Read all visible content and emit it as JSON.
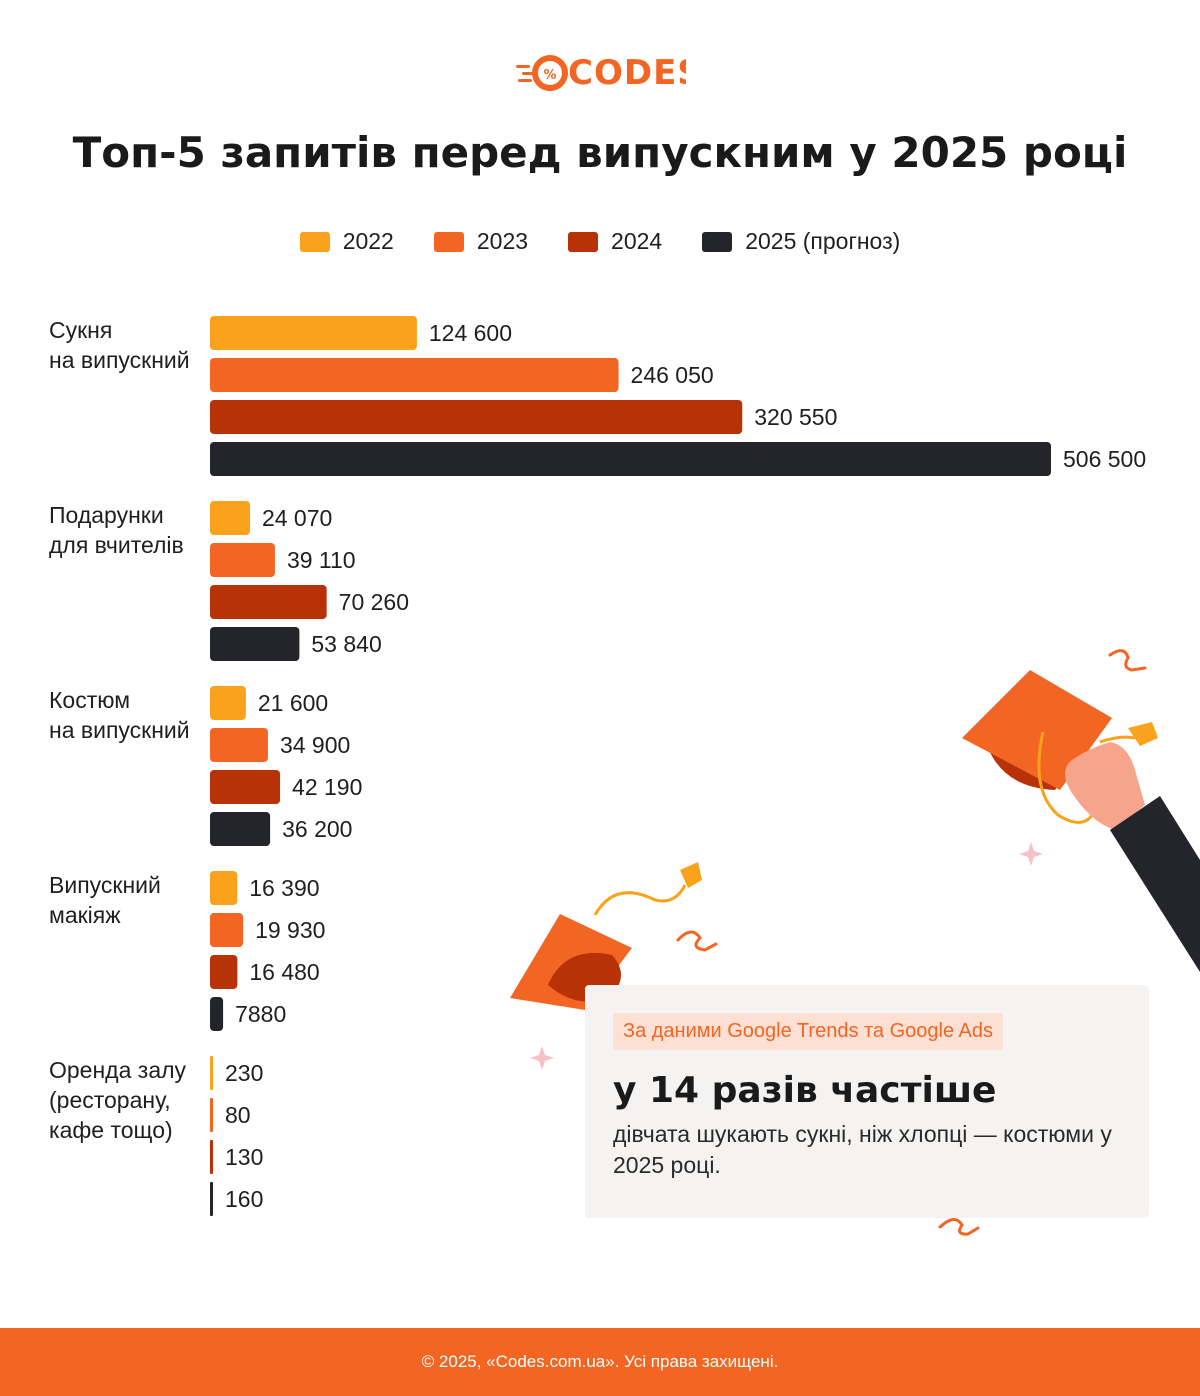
{
  "logo": {
    "text": "CODES"
  },
  "colors": {
    "accent": "#f26522",
    "y2022": "#faa21b",
    "y2023": "#f26522",
    "y2024": "#b83208",
    "y2025": "#24252a",
    "footer_bg": "#f26522"
  },
  "chart_data": {
    "type": "bar",
    "orientation": "horizontal",
    "title": "Топ-5 запитів перед випускним у 2025 році",
    "legend_position": "top",
    "grid": false,
    "xlim": [
      0,
      506500
    ],
    "series_names": [
      "2022",
      "2023",
      "2024",
      "2025 (прогноз)"
    ],
    "categories": [
      {
        "lines": [
          "Сукня",
          "на випускний"
        ],
        "values": [
          124600,
          246050,
          320550,
          506500
        ],
        "labels": [
          "124 600",
          "246 050",
          "320 550",
          "506 500"
        ]
      },
      {
        "lines": [
          "Подарунки",
          "для вчителів"
        ],
        "values": [
          24070,
          39110,
          70260,
          53840
        ],
        "labels": [
          "24 070",
          "39 110",
          "70 260",
          "53 840"
        ]
      },
      {
        "lines": [
          "Костюм",
          "на випускний"
        ],
        "values": [
          21600,
          34900,
          42190,
          36200
        ],
        "labels": [
          "21 600",
          "34 900",
          "42 190",
          "36 200"
        ]
      },
      {
        "lines": [
          "Випускний",
          "макіяж"
        ],
        "values": [
          16390,
          19930,
          16480,
          7880
        ],
        "labels": [
          "16 390",
          "19 930",
          "16 480",
          "7880"
        ]
      },
      {
        "lines": [
          "Оренда залу",
          "(ресторану,",
          "кафе тощо)"
        ],
        "values": [
          230,
          80,
          130,
          160
        ],
        "labels": [
          "230",
          "80",
          "130",
          "160"
        ]
      }
    ]
  },
  "info": {
    "source": "За даними Google Trends та Google Ads",
    "headline": "у 14 разів частіше",
    "text": "дівчата шукають сукні, ніж хлопці — костюми у 2025 році."
  },
  "footer": {
    "text": "© 2025, «Codes.com.ua». Усі права захищені."
  }
}
